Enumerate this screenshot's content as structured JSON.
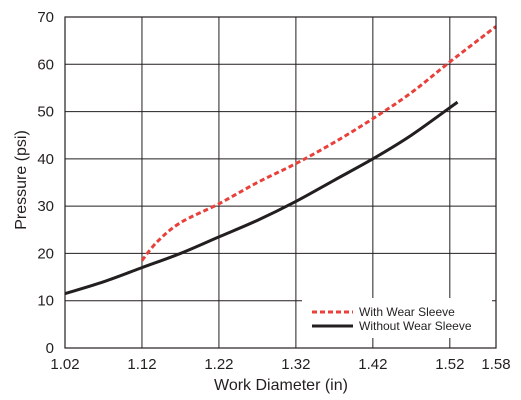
{
  "chart_data": {
    "type": "line",
    "xlabel": "Work Diameter (in)",
    "ylabel": "Pressure (psi)",
    "xlim": [
      1.02,
      1.58
    ],
    "ylim": [
      0,
      70
    ],
    "xticks": [
      "1.02",
      "1.12",
      "1.22",
      "1.32",
      "1.42",
      "1.52",
      "1.58"
    ],
    "yticks": [
      "0",
      "10",
      "20",
      "30",
      "40",
      "50",
      "60",
      "70"
    ],
    "xtick_values": [
      1.02,
      1.12,
      1.22,
      1.32,
      1.42,
      1.52,
      1.58
    ],
    "ytick_values": [
      0,
      10,
      20,
      30,
      40,
      50,
      60,
      70
    ],
    "grid": true,
    "legend_position": "bottom-right",
    "series": [
      {
        "name": "With Wear Sleeve",
        "style": "dotted",
        "color": "#e8413c",
        "x": [
          1.12,
          1.14,
          1.17,
          1.22,
          1.27,
          1.32,
          1.37,
          1.42,
          1.47,
          1.52,
          1.58
        ],
        "y": [
          18.5,
          22.5,
          26.5,
          30.5,
          35.0,
          39.0,
          43.5,
          48.5,
          54.0,
          60.5,
          68.0
        ]
      },
      {
        "name": "Without Wear Sleeve",
        "style": "solid",
        "color": "#231f20",
        "x": [
          1.02,
          1.07,
          1.12,
          1.17,
          1.22,
          1.27,
          1.32,
          1.37,
          1.42,
          1.47,
          1.53
        ],
        "y": [
          11.5,
          14.0,
          17.0,
          20.0,
          23.5,
          27.0,
          31.0,
          35.5,
          40.0,
          45.0,
          52.0
        ]
      }
    ]
  }
}
